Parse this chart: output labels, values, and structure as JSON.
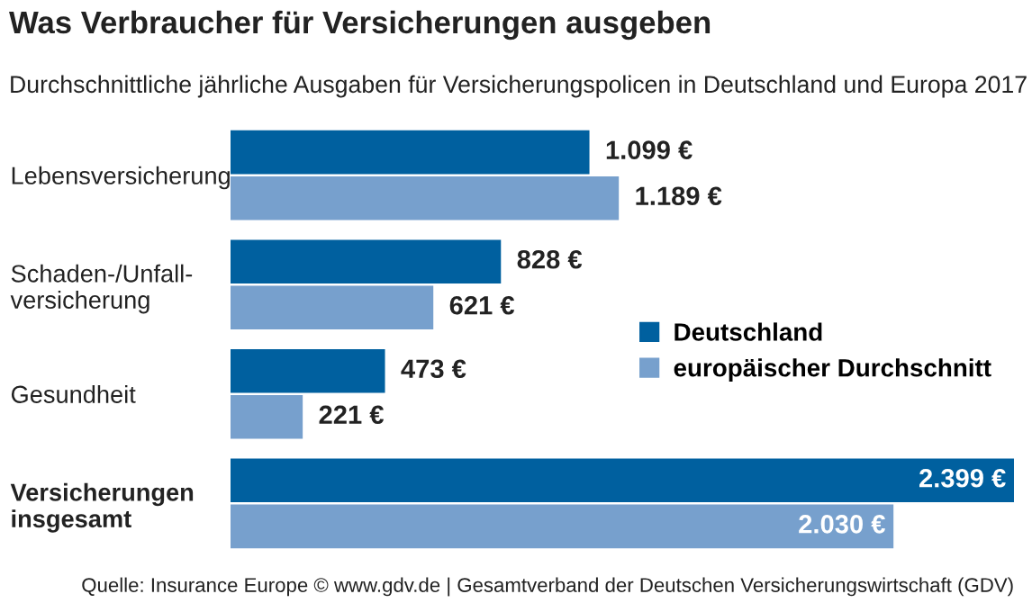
{
  "chart_data": {
    "type": "bar",
    "orientation": "horizontal",
    "title": "Was Verbraucher für Versicherungen ausgeben",
    "subtitle": "Durchschnittliche jährliche Ausgaben für Versicherungspolicen in Deutschland und Europa 2017",
    "categories": [
      "Lebensversicherung",
      "Schaden-/Unfall-\nversicherung",
      "Gesundheit",
      "Versicherungen\ninsgesamt"
    ],
    "series": [
      {
        "name": "Deutschland",
        "color": "#00609f",
        "values": [
          1099,
          828,
          473,
          2399
        ],
        "value_labels": [
          "1.099 €",
          "828 €",
          "473 €",
          "2.399 €"
        ]
      },
      {
        "name": "europäischer Durchschnitt",
        "color": "#77a0cd",
        "values": [
          1189,
          621,
          221,
          2030
        ],
        "value_labels": [
          "1.189 €",
          "621 €",
          "221 €",
          "2.030 €"
        ]
      }
    ],
    "xlim": [
      0,
      2399
    ],
    "tick_labels": "y",
    "grid": false,
    "legend": "right",
    "annotations": [
      "Quelle: Insurance Europe © www.gdv.de | Gesamtverband der Deutschen Versicherungswirtschaft (GDV)"
    ]
  }
}
